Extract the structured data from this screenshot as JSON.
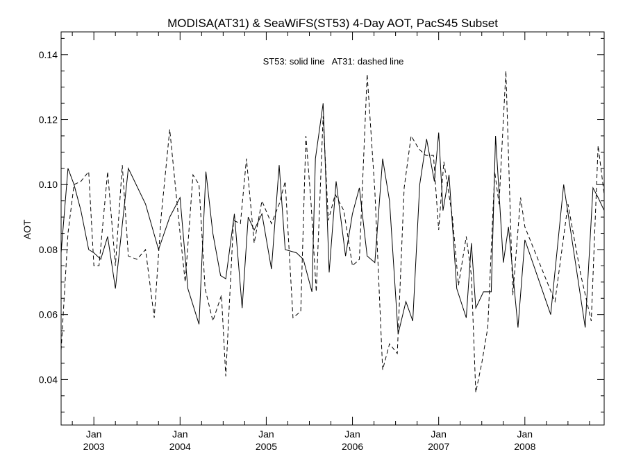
{
  "chart_data": {
    "type": "line",
    "title": "MODISA(AT31) & SeaWiFS(ST53) 4-Day AOT, PacS45 Subset",
    "ylabel": "AOT",
    "xlabel": "",
    "annotation": "ST53: solid line   AT31: dashed line",
    "xlim": [
      2002.62,
      2008.92
    ],
    "ylim": [
      0.026,
      0.147
    ],
    "grid": false,
    "y_ticks": [
      {
        "value": 0.04,
        "label": "0.04"
      },
      {
        "value": 0.06,
        "label": "0.06"
      },
      {
        "value": 0.08,
        "label": "0.08"
      },
      {
        "value": 0.1,
        "label": "0.10"
      },
      {
        "value": 0.12,
        "label": "0.12"
      },
      {
        "value": 0.14,
        "label": "0.14"
      }
    ],
    "x_ticks": [
      {
        "value": 2003.0,
        "month": "Jan",
        "year": "2003"
      },
      {
        "value": 2004.0,
        "month": "Jan",
        "year": "2004"
      },
      {
        "value": 2005.0,
        "month": "Jan",
        "year": "2005"
      },
      {
        "value": 2006.0,
        "month": "Jan",
        "year": "2006"
      },
      {
        "value": 2007.0,
        "month": "Jan",
        "year": "2007"
      },
      {
        "value": 2008.0,
        "month": "Jan",
        "year": "2008"
      }
    ],
    "series": [
      {
        "name": "ST53",
        "style": "solid",
        "x": [
          2002.62,
          2002.7,
          2002.77,
          2002.85,
          2002.94,
          2003.0,
          2003.08,
          2003.16,
          2003.25,
          2003.4,
          2003.6,
          2003.75,
          2003.88,
          2004.0,
          2004.09,
          2004.22,
          2004.3,
          2004.38,
          2004.47,
          2004.53,
          2004.63,
          2004.72,
          2004.79,
          2004.86,
          2004.95,
          2005.06,
          2005.15,
          2005.22,
          2005.35,
          2005.43,
          2005.53,
          2005.57,
          2005.66,
          2005.73,
          2005.81,
          2005.92,
          2006.0,
          2006.08,
          2006.17,
          2006.26,
          2006.35,
          2006.43,
          2006.53,
          2006.62,
          2006.7,
          2006.78,
          2006.86,
          2006.95,
          2007.0,
          2007.05,
          2007.12,
          2007.21,
          2007.32,
          2007.38,
          2007.43,
          2007.52,
          2007.61,
          2007.66,
          2007.75,
          2007.81,
          2007.92,
          2008.0,
          2008.3,
          2008.45,
          2008.7,
          2008.79,
          2008.85,
          2008.92
        ],
        "y": [
          0.079,
          0.105,
          0.1,
          0.092,
          0.08,
          0.079,
          0.077,
          0.084,
          0.068,
          0.105,
          0.094,
          0.08,
          0.09,
          0.096,
          0.068,
          0.057,
          0.104,
          0.085,
          0.072,
          0.071,
          0.091,
          0.062,
          0.09,
          0.086,
          0.091,
          0.074,
          0.106,
          0.08,
          0.079,
          0.077,
          0.067,
          0.108,
          0.125,
          0.073,
          0.101,
          0.078,
          0.091,
          0.099,
          0.078,
          0.076,
          0.108,
          0.095,
          0.054,
          0.064,
          0.058,
          0.1,
          0.114,
          0.101,
          0.116,
          0.092,
          0.103,
          0.068,
          0.059,
          0.082,
          0.062,
          0.067,
          0.067,
          0.115,
          0.076,
          0.087,
          0.056,
          0.083,
          0.06,
          0.1,
          0.056,
          0.099,
          0.096,
          0.092
        ]
      },
      {
        "name": "AT31",
        "style": "dashed",
        "x": [
          2002.62,
          2002.7,
          2002.77,
          2002.85,
          2002.94,
          2003.0,
          2003.06,
          2003.16,
          2003.25,
          2003.33,
          2003.4,
          2003.5,
          2003.6,
          2003.7,
          2003.78,
          2003.88,
          2004.0,
          2004.06,
          2004.15,
          2004.22,
          2004.29,
          2004.38,
          2004.48,
          2004.53,
          2004.62,
          2004.7,
          2004.77,
          2004.86,
          2004.95,
          2005.06,
          2005.15,
          2005.22,
          2005.31,
          2005.4,
          2005.46,
          2005.52,
          2005.58,
          2005.66,
          2005.72,
          2005.8,
          2005.9,
          2006.0,
          2006.08,
          2006.17,
          2006.26,
          2006.35,
          2006.43,
          2006.52,
          2006.6,
          2006.68,
          2006.77,
          2006.85,
          2006.94,
          2007.0,
          2007.06,
          2007.16,
          2007.23,
          2007.32,
          2007.38,
          2007.43,
          2007.5,
          2007.57,
          2007.65,
          2007.7,
          2007.78,
          2007.86,
          2007.95,
          2008.0,
          2008.35,
          2008.5,
          2008.65,
          2008.77,
          2008.85,
          2008.92
        ],
        "y": [
          0.049,
          0.085,
          0.1,
          0.101,
          0.104,
          0.075,
          0.075,
          0.104,
          0.075,
          0.106,
          0.078,
          0.077,
          0.08,
          0.059,
          0.09,
          0.117,
          0.085,
          0.07,
          0.103,
          0.1,
          0.068,
          0.058,
          0.066,
          0.041,
          0.089,
          0.088,
          0.108,
          0.082,
          0.095,
          0.088,
          0.094,
          0.101,
          0.059,
          0.061,
          0.115,
          0.094,
          0.067,
          0.121,
          0.089,
          0.097,
          0.092,
          0.075,
          0.077,
          0.134,
          0.098,
          0.043,
          0.051,
          0.048,
          0.099,
          0.115,
          0.111,
          0.109,
          0.109,
          0.086,
          0.107,
          0.09,
          0.069,
          0.084,
          0.072,
          0.036,
          0.045,
          0.056,
          0.104,
          0.094,
          0.135,
          0.066,
          0.096,
          0.087,
          0.064,
          0.094,
          0.072,
          0.058,
          0.112,
          0.097
        ]
      }
    ]
  }
}
